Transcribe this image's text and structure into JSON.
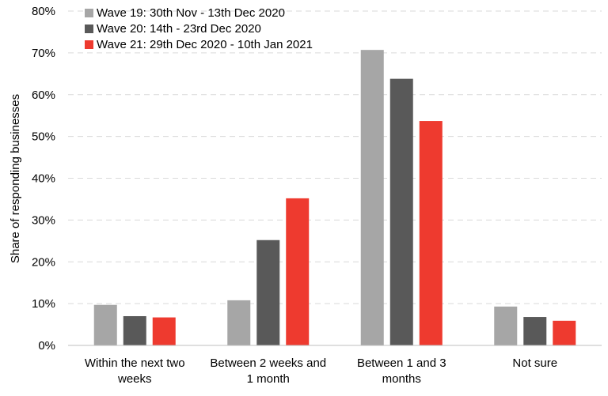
{
  "chart_data": {
    "type": "bar",
    "title": "",
    "xlabel": "",
    "ylabel": "Share of responding businesses",
    "ylim": [
      0,
      80
    ],
    "yticks": [
      0,
      10,
      20,
      30,
      40,
      50,
      60,
      70,
      80
    ],
    "ytick_labels": [
      "0%",
      "10%",
      "20%",
      "30%",
      "40%",
      "50%",
      "60%",
      "70%",
      "80%"
    ],
    "grid": true,
    "legend_position": "top-left",
    "categories": [
      [
        "Within the next two",
        "weeks"
      ],
      [
        "Between 2 weeks and",
        "1 month"
      ],
      [
        "Between 1 and 3",
        "months"
      ],
      [
        "Not sure"
      ]
    ],
    "series": [
      {
        "name": "Wave 19: 30th Nov - 13th Dec 2020",
        "color": "#a6a6a6",
        "values": [
          9.7,
          10.8,
          70.7,
          9.3
        ]
      },
      {
        "name": "Wave 20: 14th - 23rd Dec 2020",
        "color": "#595959",
        "values": [
          7.0,
          25.2,
          63.8,
          6.8
        ]
      },
      {
        "name": "Wave 21: 29th Dec 2020 - 10th Jan 2021",
        "color": "#ee3a2f",
        "values": [
          6.7,
          35.2,
          53.7,
          5.9
        ]
      }
    ]
  }
}
